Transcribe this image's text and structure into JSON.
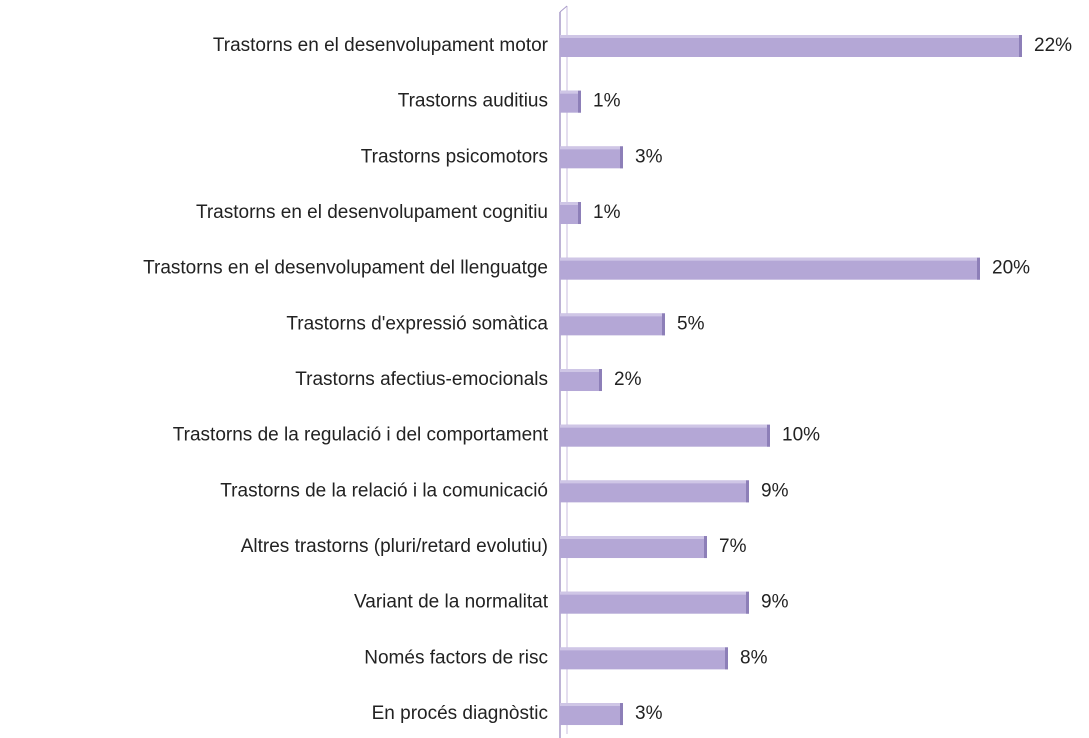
{
  "chart_data": {
    "type": "hbar",
    "categories": [
      "Trastorns en el desenvolupament motor",
      "Trastorns auditius",
      "Trastorns psicomotors",
      "Trastorns en el desenvolupament cognitiu",
      "Trastorns en el desenvolupament del llenguatge",
      "Trastorns d'expressió somàtica",
      "Trastorns afectius-emocionals",
      "Trastorns de la regulació i del comportament",
      "Trastorns de la relació i la comunicació",
      "Altres trastorns (pluri/retard evolutiu)",
      "Variant de la normalitat",
      "Només factors de risc",
      "En procés diagnòstic"
    ],
    "values": [
      22,
      1,
      3,
      1,
      20,
      5,
      2,
      10,
      9,
      7,
      9,
      8,
      3
    ],
    "value_labels": [
      "22%",
      "1%",
      "3%",
      "1%",
      "20%",
      "5%",
      "2%",
      "10%",
      "9%",
      "7%",
      "9%",
      "8%",
      "3%"
    ],
    "color": "#b4a7d6"
  }
}
